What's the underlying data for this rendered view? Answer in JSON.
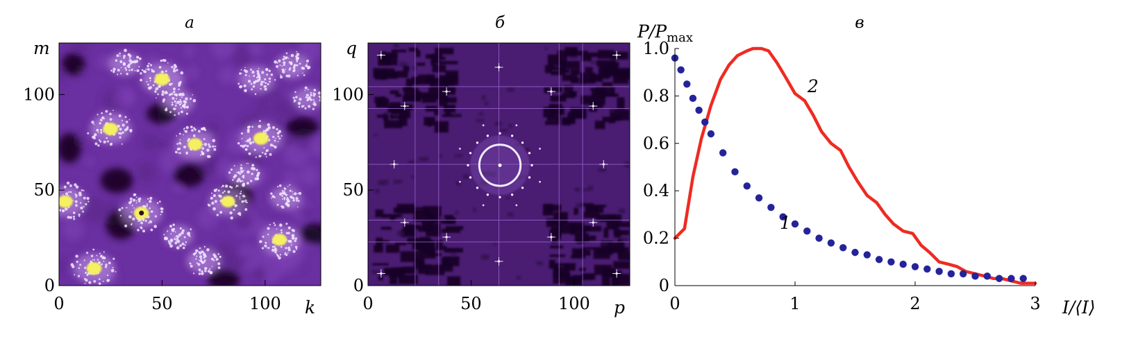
{
  "colors": {
    "background_purple": "#6a2fa0",
    "dark_purple": "#1a0626",
    "bright_white": "#f0e6ff",
    "bright_yellow": "#f5f060",
    "red_curve": "#ee2b22",
    "blue_dots": "#25239a"
  },
  "chart_data": [
    {
      "type": "heatmap",
      "title": "а",
      "xlabel": "k",
      "ylabel": "m",
      "xlim": [
        0,
        127
      ],
      "ylim": [
        0,
        127
      ],
      "x_ticks": [
        "0",
        "50",
        "100"
      ],
      "y_ticks": [
        "0",
        "50",
        "100"
      ],
      "grid": false,
      "bright_spots": [
        {
          "x": 50,
          "y": 108,
          "intensity": 1.0
        },
        {
          "x": 25,
          "y": 82,
          "intensity": 1.0
        },
        {
          "x": 66,
          "y": 74,
          "intensity": 0.9
        },
        {
          "x": 98,
          "y": 77,
          "intensity": 1.0
        },
        {
          "x": 3,
          "y": 44,
          "intensity": 1.0
        },
        {
          "x": 40,
          "y": 38,
          "intensity": 1.0
        },
        {
          "x": 82,
          "y": 44,
          "intensity": 0.8
        },
        {
          "x": 107,
          "y": 24,
          "intensity": 0.9
        },
        {
          "x": 17,
          "y": 9,
          "intensity": 1.0
        },
        {
          "x": 70,
          "y": 13,
          "intensity": 0.6
        },
        {
          "x": 96,
          "y": 108,
          "intensity": 0.7
        },
        {
          "x": 113,
          "y": 115,
          "intensity": 0.6
        },
        {
          "x": 58,
          "y": 96,
          "intensity": 0.5
        },
        {
          "x": 32,
          "y": 116,
          "intensity": 0.5
        },
        {
          "x": 121,
          "y": 98,
          "intensity": 0.4
        },
        {
          "x": 110,
          "y": 46,
          "intensity": 0.5
        },
        {
          "x": 90,
          "y": 58,
          "intensity": 0.4
        },
        {
          "x": 58,
          "y": 26,
          "intensity": 0.4
        }
      ],
      "dark_spots": [
        {
          "x": 50,
          "y": 90
        },
        {
          "x": 28,
          "y": 55
        },
        {
          "x": 63,
          "y": 58
        },
        {
          "x": 86,
          "y": 47
        },
        {
          "x": 30,
          "y": 32
        },
        {
          "x": 80,
          "y": 3
        },
        {
          "x": 124,
          "y": 27
        },
        {
          "x": 5,
          "y": 72
        },
        {
          "x": 118,
          "y": 83
        },
        {
          "x": 7,
          "y": 116
        }
      ]
    },
    {
      "type": "heatmap",
      "title": "б",
      "xlabel": "p",
      "ylabel": "q",
      "xlim": [
        0,
        127
      ],
      "ylim": [
        0,
        127
      ],
      "x_ticks": [
        "0",
        "50",
        "100"
      ],
      "y_ticks": [
        "0",
        "50",
        "100"
      ],
      "grid": false,
      "ring": {
        "center_x": 64,
        "center_y": 63,
        "radius": 10
      }
    },
    {
      "type": "line",
      "title": "в",
      "xlabel": "I/⟨I⟩",
      "ylabel": "P/P",
      "ylabel_sub": "max",
      "xlim": [
        0,
        3
      ],
      "ylim": [
        0,
        1
      ],
      "x_ticks": [
        "0",
        "1",
        "2",
        "3"
      ],
      "y_ticks": [
        "0",
        "0.2",
        "0.4",
        "0.6",
        "0.8",
        "1.0"
      ],
      "grid": false,
      "curve_labels": [
        "1",
        "2"
      ],
      "series": [
        {
          "style": "dotted",
          "x": [
            0.0,
            0.05,
            0.1,
            0.15,
            0.2,
            0.25,
            0.3,
            0.4,
            0.5,
            0.6,
            0.7,
            0.8,
            0.9,
            1.0,
            1.1,
            1.2,
            1.3,
            1.4,
            1.5,
            1.6,
            1.7,
            1.8,
            1.9,
            2.0,
            2.1,
            2.2,
            2.3,
            2.4,
            2.5,
            2.6,
            2.7,
            2.8,
            2.9
          ],
          "values": [
            0.96,
            0.91,
            0.85,
            0.79,
            0.74,
            0.69,
            0.64,
            0.56,
            0.48,
            0.42,
            0.37,
            0.33,
            0.29,
            0.26,
            0.23,
            0.2,
            0.18,
            0.16,
            0.14,
            0.13,
            0.11,
            0.1,
            0.09,
            0.08,
            0.07,
            0.06,
            0.05,
            0.05,
            0.04,
            0.04,
            0.03,
            0.03,
            0.03
          ]
        },
        {
          "style": "solid",
          "x": [
            0.0,
            0.08,
            0.15,
            0.22,
            0.3,
            0.38,
            0.45,
            0.52,
            0.6,
            0.65,
            0.72,
            0.78,
            0.85,
            0.92,
            1.0,
            1.08,
            1.15,
            1.22,
            1.3,
            1.38,
            1.45,
            1.52,
            1.6,
            1.68,
            1.75,
            1.82,
            1.9,
            1.98,
            2.05,
            2.12,
            2.2,
            2.28,
            2.35,
            2.42,
            2.5,
            2.58,
            2.65,
            2.72,
            2.8,
            2.88,
            2.95,
            3.0
          ],
          "values": [
            0.2,
            0.24,
            0.46,
            0.62,
            0.76,
            0.87,
            0.93,
            0.97,
            0.99,
            1.0,
            1.0,
            0.99,
            0.94,
            0.88,
            0.81,
            0.78,
            0.72,
            0.65,
            0.6,
            0.57,
            0.5,
            0.44,
            0.38,
            0.35,
            0.3,
            0.26,
            0.23,
            0.22,
            0.17,
            0.14,
            0.1,
            0.09,
            0.08,
            0.06,
            0.05,
            0.04,
            0.03,
            0.03,
            0.02,
            0.01,
            0.01,
            0.01
          ]
        }
      ]
    }
  ]
}
